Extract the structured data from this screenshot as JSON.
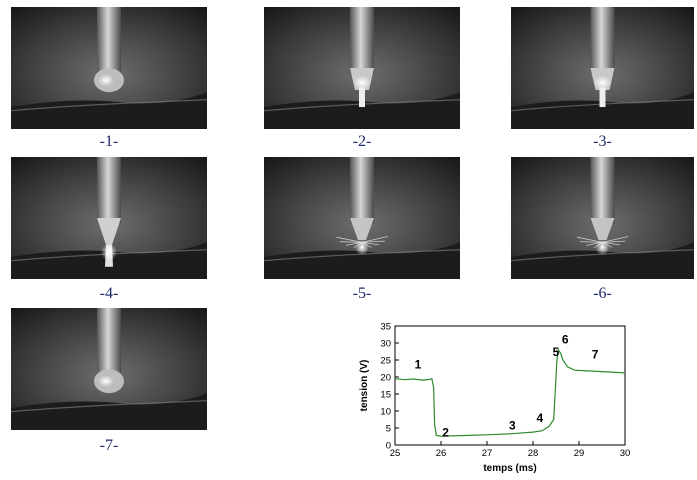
{
  "frames": [
    {
      "label": "-1-",
      "variant": "drop"
    },
    {
      "label": "-2-",
      "variant": "neck"
    },
    {
      "label": "-3-",
      "variant": "neck"
    },
    {
      "label": "-4-",
      "variant": "bridge"
    },
    {
      "label": "-5-",
      "variant": "spatter"
    },
    {
      "label": "-6-",
      "variant": "spatter"
    },
    {
      "label": "-7-",
      "variant": "drop"
    }
  ],
  "chart_data": {
    "type": "line",
    "xlabel": "temps (ms)",
    "ylabel": "tension (V)",
    "xlim": [
      25,
      30
    ],
    "ylim": [
      0,
      35
    ],
    "xticks": [
      25,
      26,
      27,
      28,
      29,
      30
    ],
    "yticks": [
      0,
      5,
      10,
      15,
      20,
      25,
      30,
      35
    ],
    "series_color": "#2e8b2e",
    "series": [
      {
        "x": [
          25.0,
          25.2,
          25.4,
          25.6,
          25.75,
          25.8,
          25.84,
          25.86,
          25.9,
          26.0,
          26.5,
          27.0,
          27.5,
          28.0,
          28.2,
          28.35,
          28.45,
          28.5,
          28.52,
          28.55,
          28.6,
          28.65,
          28.75,
          28.9,
          29.2,
          29.6,
          30.0
        ],
        "y": [
          19.5,
          19.2,
          19.4,
          19.1,
          19.3,
          19.5,
          17.0,
          6.0,
          2.8,
          2.6,
          2.8,
          3.0,
          3.3,
          3.8,
          4.2,
          5.5,
          7.5,
          20.0,
          25.0,
          28.0,
          27.0,
          25.0,
          23.0,
          22.0,
          21.8,
          21.5,
          21.2
        ]
      }
    ],
    "annotations": [
      {
        "text": "1",
        "x": 25.5,
        "y": 22.5
      },
      {
        "text": "2",
        "x": 26.1,
        "y": 2.5
      },
      {
        "text": "3",
        "x": 27.55,
        "y": 4.5
      },
      {
        "text": "4",
        "x": 28.15,
        "y": 6.8
      },
      {
        "text": "5",
        "x": 28.5,
        "y": 26.2
      },
      {
        "text": "6",
        "x": 28.7,
        "y": 29.8
      },
      {
        "text": "7",
        "x": 29.35,
        "y": 25.5
      }
    ]
  }
}
